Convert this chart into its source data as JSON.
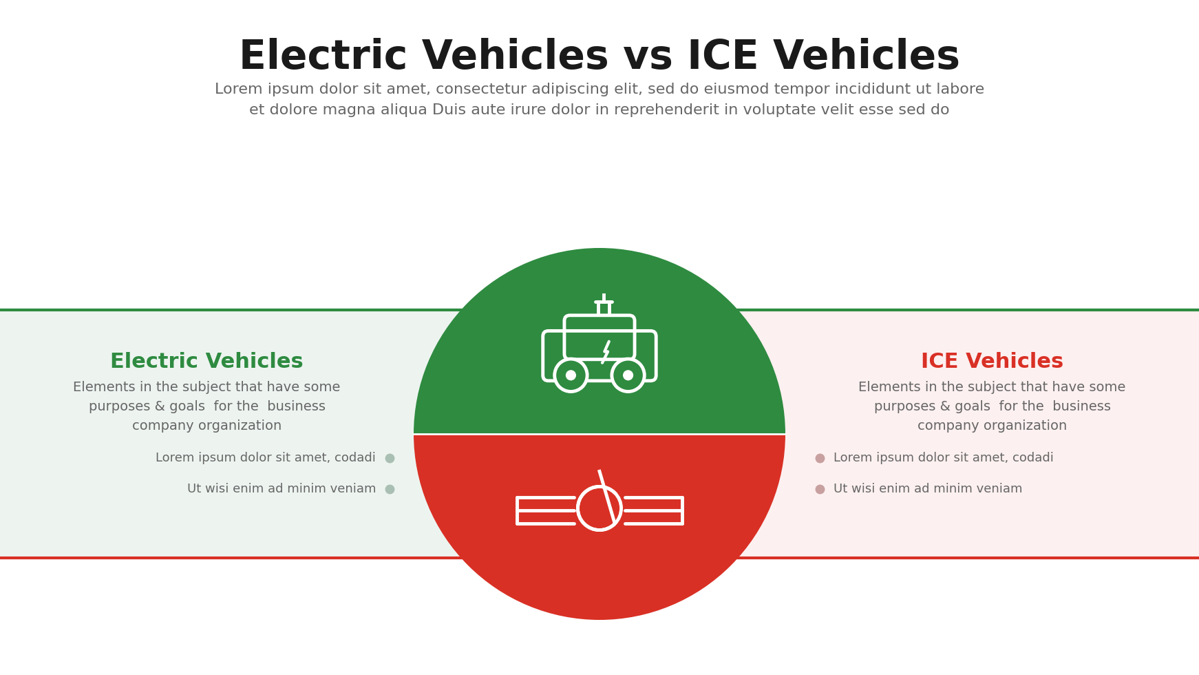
{
  "title": "Electric Vehicles vs ICE Vehicles",
  "subtitle": "Lorem ipsum dolor sit amet, consectetur adipiscing elit, sed do eiusmod tempor incididunt ut labore\net dolore magna aliqua Duis aute irure dolor in reprehenderit in voluptate velit esse sed do",
  "left_title": "Electric Vehicles",
  "left_desc": "Elements in the subject that have some\npurposes & goals  for the  business\ncompany organization",
  "left_bullet1": "Lorem ipsum dolor sit amet, codadi",
  "left_bullet2": "Ut wisi enim ad minim veniam",
  "right_title": "ICE Vehicles",
  "right_desc": "Elements in the subject that have some\npurposes & goals  for the  business\ncompany organization",
  "right_bullet1": "Lorem ipsum dolor sit amet, codadi",
  "right_bullet2": "Ut wisi enim ad minim veniam",
  "green_color": "#2e8b40",
  "red_color": "#d93025",
  "light_green_bg": "#edf4f0",
  "light_red_bg": "#fdf0f0",
  "title_color": "#1a1a1a",
  "subtitle_color": "#666666",
  "left_text_color": "#666666",
  "right_text_color": "#666666",
  "bullet_dot_green": "#aabfb4",
  "bullet_dot_red": "#c8a0a0",
  "bg_color": "#ffffff"
}
